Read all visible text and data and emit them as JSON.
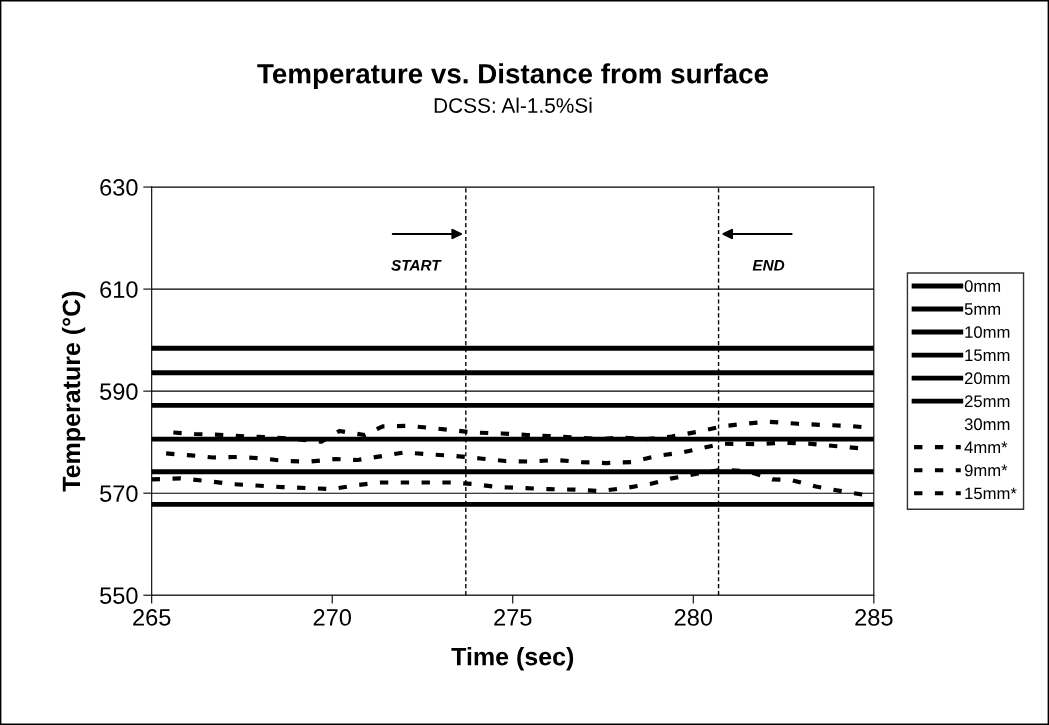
{
  "chart_data": {
    "type": "line",
    "title": "Temperature vs. Distance from surface",
    "subtitle": "DCSS: Al-1.5%Si",
    "xlabel": "Time (sec)",
    "ylabel": "Temperature (°C)",
    "x": [
      265,
      285
    ],
    "series": [
      {
        "name": "0mm",
        "color": "#000000",
        "values": [
          598.4,
          598.4
        ]
      },
      {
        "name": "5mm",
        "color": "#000000",
        "values": [
          593.6,
          593.6
        ]
      },
      {
        "name": "10mm",
        "color": "#000000",
        "values": [
          587.2,
          587.2
        ]
      },
      {
        "name": "15mm",
        "color": "#000000",
        "values": [
          580.6,
          580.6
        ]
      },
      {
        "name": "20mm",
        "color": "#000000",
        "values": [
          574.2,
          574.2
        ]
      },
      {
        "name": "25mm",
        "color": "#000000",
        "values": [
          567.8,
          567.8
        ]
      },
      {
        "name": "30mm",
        "values": [
          null,
          null
        ]
      },
      {
        "name": "4mm*",
        "color": "#000000",
        "line_style": "dashed",
        "x": [
          265.6,
          266.2,
          267.0,
          267.7,
          268.4,
          269.0,
          269.7,
          270.2,
          270.9,
          271.4,
          272.1,
          272.7,
          273.4,
          273.9,
          274.7,
          275.4,
          276.0,
          276.7,
          277.4,
          278.0,
          278.7,
          279.4,
          280.1,
          280.8,
          281.4,
          282.1,
          282.9,
          283.5,
          284.3,
          284.9
        ],
        "values": [
          581.9,
          581.6,
          581.4,
          581.1,
          580.9,
          580.6,
          580.1,
          582.2,
          581.4,
          583.1,
          583.2,
          582.8,
          582.3,
          581.9,
          581.7,
          581.4,
          581.2,
          580.9,
          580.6,
          580.9,
          580.6,
          581.1,
          582.0,
          583.1,
          583.6,
          584.0,
          583.6,
          583.4,
          583.2,
          582.8
        ]
      },
      {
        "name": "9mm*",
        "color": "#000000",
        "line_style": "dashed",
        "x": [
          265.4,
          266.1,
          266.7,
          267.4,
          268.1,
          268.7,
          269.4,
          270.1,
          270.7,
          271.4,
          272.0,
          272.7,
          273.4,
          274.1,
          274.8,
          275.5,
          276.2,
          276.9,
          277.6,
          278.3,
          279.0,
          279.7,
          280.8,
          281.8,
          282.5,
          283.2,
          284.6
        ],
        "values": [
          577.8,
          577.4,
          577.0,
          577.1,
          576.8,
          576.3,
          576.2,
          576.7,
          576.5,
          577.3,
          578.0,
          577.6,
          577.3,
          576.8,
          576.3,
          576.2,
          576.5,
          576.1,
          575.9,
          576.1,
          577.3,
          578.0,
          579.7,
          579.6,
          579.9,
          579.7,
          578.8
        ]
      },
      {
        "name": "15mm*",
        "color": "#000000",
        "line_style": "dashed",
        "x": [
          265.0,
          265.8,
          266.5,
          267.2,
          267.9,
          268.6,
          269.3,
          270.0,
          270.6,
          271.3,
          272.0,
          272.6,
          273.3,
          273.9,
          274.6,
          275.3,
          276.0,
          276.7,
          277.4,
          278.1,
          278.8,
          279.4,
          280.1,
          280.8,
          281.5,
          282.2,
          282.7,
          283.4,
          284.1,
          284.8
        ],
        "values": [
          572.7,
          572.9,
          572.4,
          571.8,
          571.5,
          571.2,
          571.0,
          570.8,
          571.5,
          572.1,
          572.1,
          572.1,
          572.1,
          571.8,
          571.2,
          571.0,
          570.8,
          570.7,
          570.4,
          571.0,
          571.8,
          572.9,
          573.8,
          574.6,
          574.3,
          572.7,
          572.6,
          571.3,
          570.4,
          569.6
        ]
      }
    ],
    "xlim": [
      265,
      285
    ],
    "xticks": [
      265,
      270,
      275,
      280,
      285
    ],
    "ylim": [
      550,
      630
    ],
    "yticks": [
      550,
      570,
      590,
      610,
      630
    ],
    "grid": "y",
    "legend": "right",
    "line_style": "solid",
    "marker": "none",
    "ref_lines": [
      {
        "axis": "x",
        "value": 273.7,
        "color": "#000000",
        "line_style": "dashed"
      },
      {
        "axis": "x",
        "value": 280.7,
        "color": "#000000",
        "line_style": "dashed"
      }
    ],
    "annotations": [
      "START",
      "END"
    ]
  }
}
